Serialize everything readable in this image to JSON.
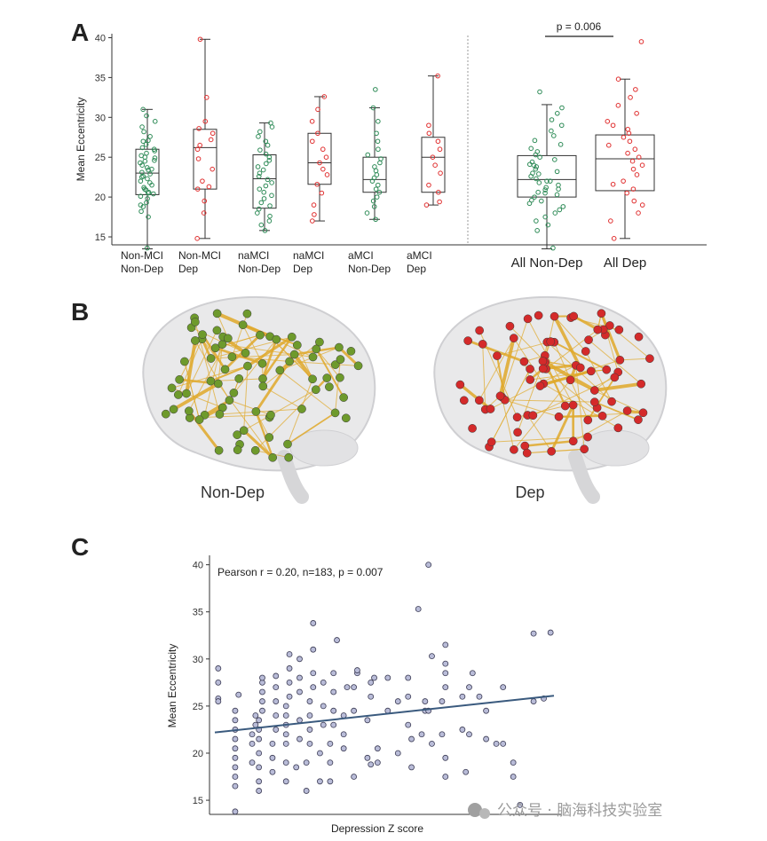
{
  "panels": {
    "a": "A",
    "b": "B",
    "c": "C"
  },
  "chart_data": [
    {
      "type": "box",
      "panel": "A",
      "ylabel": "Mean Eccentricity",
      "ylim": [
        14,
        40.5
      ],
      "yticks": [
        15,
        20,
        25,
        30,
        35,
        40
      ],
      "groups": [
        {
          "label_lines": [
            "Non-MCI",
            "Non-Dep"
          ],
          "color": "#2e8b57",
          "min": 13.5,
          "q1": 20.3,
          "median": 23.0,
          "q3": 26.0,
          "max": 31.0,
          "points": [
            13.6,
            17.5,
            18.2,
            18.8,
            19.3,
            19.8,
            20.1,
            20.4,
            20.6,
            20.9,
            21.2,
            21.5,
            21.8,
            22.0,
            22.3,
            22.6,
            22.9,
            23.1,
            23.4,
            23.7,
            24.0,
            24.3,
            24.6,
            24.9,
            25.2,
            25.5,
            25.8,
            26.2,
            26.6,
            27.1,
            27.6,
            28.2,
            28.8,
            29.5,
            30.2,
            31.0,
            20.5,
            21.0,
            22.5,
            23.5,
            24.5,
            25.0,
            19.0,
            26.0,
            27.0
          ]
        },
        {
          "label_lines": [
            "Non-MCI",
            "Dep"
          ],
          "color": "#e03030",
          "min": 14.8,
          "q1": 21.0,
          "median": 26.2,
          "q3": 28.5,
          "max": 39.8,
          "points": [
            14.8,
            18.0,
            19.5,
            21.0,
            21.3,
            22.0,
            23.5,
            24.8,
            26.0,
            26.5,
            27.2,
            28.0,
            28.6,
            29.5,
            32.5,
            39.8
          ]
        },
        {
          "label_lines": [
            "naMCI",
            "Non-Dep"
          ],
          "color": "#2e8b57",
          "min": 15.8,
          "q1": 18.6,
          "median": 22.3,
          "q3": 25.3,
          "max": 29.3,
          "points": [
            15.8,
            16.5,
            17.0,
            17.6,
            18.0,
            18.5,
            18.9,
            19.3,
            19.8,
            20.2,
            20.6,
            21.0,
            21.4,
            21.8,
            22.2,
            22.6,
            23.0,
            23.4,
            23.8,
            24.2,
            24.6,
            25.0,
            25.4,
            25.9,
            26.5,
            27.0,
            27.6,
            28.2,
            28.8,
            29.3
          ]
        },
        {
          "label_lines": [
            "naMCI",
            "Dep"
          ],
          "color": "#e03030",
          "min": 17.0,
          "q1": 21.6,
          "median": 24.3,
          "q3": 28.0,
          "max": 32.6,
          "points": [
            17.0,
            17.8,
            19.0,
            20.5,
            21.6,
            22.8,
            23.5,
            24.3,
            25.0,
            26.0,
            27.0,
            28.0,
            29.5,
            31.0,
            32.6
          ]
        },
        {
          "label_lines": [
            "aMCI",
            "Non-Dep"
          ],
          "color": "#2e8b57",
          "min": 17.2,
          "q1": 20.6,
          "median": 22.2,
          "q3": 25.0,
          "max": 31.2,
          "points": [
            17.2,
            18.0,
            18.8,
            19.5,
            20.0,
            20.6,
            21.0,
            21.5,
            22.0,
            22.4,
            22.8,
            23.3,
            23.8,
            24.3,
            24.8,
            25.3,
            26.0,
            27.0,
            28.0,
            29.5,
            31.2,
            33.5
          ]
        },
        {
          "label_lines": [
            "aMCI",
            "Dep"
          ],
          "color": "#e03030",
          "min": 19.0,
          "q1": 20.6,
          "median": 25.0,
          "q3": 27.5,
          "max": 35.2,
          "points": [
            19.0,
            19.4,
            20.6,
            21.5,
            23.0,
            24.0,
            25.0,
            26.0,
            27.0,
            28.0,
            29.0,
            35.2
          ]
        }
      ],
      "pooled": [
        {
          "label": "All Non-Dep",
          "color": "#2e8b57",
          "min": 13.5,
          "q1": 20.0,
          "median": 22.2,
          "q3": 25.2,
          "max": 31.6,
          "points": [
            13.6,
            15.8,
            16.5,
            17.0,
            17.5,
            18.0,
            18.4,
            18.8,
            19.2,
            19.6,
            20.0,
            20.3,
            20.6,
            20.9,
            21.2,
            21.5,
            21.8,
            22.0,
            22.3,
            22.6,
            22.9,
            23.2,
            23.5,
            23.8,
            24.1,
            24.4,
            24.7,
            25.0,
            25.3,
            25.7,
            26.1,
            26.6,
            27.1,
            27.7,
            28.3,
            29.0,
            29.7,
            30.5,
            31.2,
            33.2,
            21.0,
            22.0,
            23.0,
            24.0,
            19.5,
            20.5
          ]
        },
        {
          "label": "All Dep",
          "color": "#e03030",
          "min": 14.8,
          "q1": 20.8,
          "median": 24.8,
          "q3": 27.8,
          "max": 34.8,
          "points": [
            14.8,
            17.0,
            18.0,
            19.0,
            19.5,
            20.5,
            21.0,
            21.6,
            22.0,
            22.8,
            23.5,
            24.0,
            24.5,
            25.0,
            25.5,
            26.0,
            26.5,
            27.0,
            27.5,
            28.0,
            28.5,
            29.0,
            29.5,
            30.5,
            31.5,
            32.5,
            33.5,
            34.8,
            39.5
          ]
        }
      ],
      "annotation": "p = 0.006"
    },
    {
      "type": "scatter",
      "panel": "C",
      "xlabel": "Depression Z score",
      "ylabel": "Mean Eccentricity",
      "ylim": [
        13.5,
        41
      ],
      "yticks": [
        15,
        20,
        25,
        30,
        35,
        40
      ],
      "annotation": "Pearson r = 0.20, n=183, p = 0.007",
      "fit_line": {
        "y_start": 22.2,
        "y_end": 26.1
      },
      "points": [
        [
          0.01,
          29.0
        ],
        [
          0.01,
          27.5
        ],
        [
          0.01,
          25.8
        ],
        [
          0.01,
          25.5
        ],
        [
          0.06,
          13.8
        ],
        [
          0.06,
          16.5
        ],
        [
          0.06,
          17.5
        ],
        [
          0.06,
          18.5
        ],
        [
          0.06,
          19.5
        ],
        [
          0.06,
          20.5
        ],
        [
          0.06,
          21.5
        ],
        [
          0.06,
          22.5
        ],
        [
          0.06,
          23.5
        ],
        [
          0.06,
          24.5
        ],
        [
          0.07,
          26.2
        ],
        [
          0.11,
          19.0
        ],
        [
          0.11,
          21.0
        ],
        [
          0.11,
          22.0
        ],
        [
          0.12,
          23.0
        ],
        [
          0.12,
          24.0
        ],
        [
          0.13,
          16.0
        ],
        [
          0.13,
          17.0
        ],
        [
          0.13,
          18.5
        ],
        [
          0.13,
          20.0
        ],
        [
          0.13,
          21.5
        ],
        [
          0.13,
          22.5
        ],
        [
          0.13,
          23.5
        ],
        [
          0.14,
          24.5
        ],
        [
          0.14,
          25.5
        ],
        [
          0.14,
          26.5
        ],
        [
          0.14,
          27.5
        ],
        [
          0.14,
          28.0
        ],
        [
          0.17,
          18.0
        ],
        [
          0.17,
          19.5
        ],
        [
          0.17,
          21.0
        ],
        [
          0.18,
          22.5
        ],
        [
          0.18,
          24.0
        ],
        [
          0.18,
          25.5
        ],
        [
          0.18,
          27.0
        ],
        [
          0.18,
          28.2
        ],
        [
          0.21,
          17.0
        ],
        [
          0.21,
          19.0
        ],
        [
          0.21,
          21.0
        ],
        [
          0.21,
          22.0
        ],
        [
          0.21,
          23.0
        ],
        [
          0.21,
          24.0
        ],
        [
          0.21,
          25.0
        ],
        [
          0.22,
          26.0
        ],
        [
          0.22,
          27.5
        ],
        [
          0.22,
          29.0
        ],
        [
          0.22,
          30.5
        ],
        [
          0.24,
          18.5
        ],
        [
          0.25,
          21.5
        ],
        [
          0.25,
          23.5
        ],
        [
          0.25,
          26.5
        ],
        [
          0.25,
          28.0
        ],
        [
          0.25,
          30.0
        ],
        [
          0.27,
          16.0
        ],
        [
          0.27,
          19.0
        ],
        [
          0.28,
          21.0
        ],
        [
          0.28,
          22.5
        ],
        [
          0.28,
          24.0
        ],
        [
          0.28,
          25.5
        ],
        [
          0.29,
          27.0
        ],
        [
          0.29,
          28.5
        ],
        [
          0.29,
          31.0
        ],
        [
          0.29,
          33.8
        ],
        [
          0.31,
          17.0
        ],
        [
          0.31,
          20.0
        ],
        [
          0.32,
          23.0
        ],
        [
          0.32,
          25.0
        ],
        [
          0.32,
          27.5
        ],
        [
          0.34,
          17.0
        ],
        [
          0.34,
          19.0
        ],
        [
          0.34,
          21.0
        ],
        [
          0.35,
          23.0
        ],
        [
          0.35,
          24.5
        ],
        [
          0.35,
          26.5
        ],
        [
          0.35,
          28.5
        ],
        [
          0.36,
          32.0
        ],
        [
          0.38,
          20.5
        ],
        [
          0.38,
          22.0
        ],
        [
          0.38,
          24.0
        ],
        [
          0.39,
          27.0
        ],
        [
          0.41,
          17.5
        ],
        [
          0.41,
          24.5
        ],
        [
          0.41,
          27.0
        ],
        [
          0.42,
          28.5
        ],
        [
          0.42,
          28.8
        ],
        [
          0.45,
          19.5
        ],
        [
          0.45,
          23.5
        ],
        [
          0.46,
          26.0
        ],
        [
          0.46,
          27.5
        ],
        [
          0.46,
          18.8
        ],
        [
          0.47,
          28.0
        ],
        [
          0.48,
          19.0
        ],
        [
          0.48,
          20.5
        ],
        [
          0.51,
          24.5
        ],
        [
          0.51,
          28.0
        ],
        [
          0.54,
          25.5
        ],
        [
          0.54,
          20.0
        ],
        [
          0.57,
          23.0
        ],
        [
          0.57,
          26.0
        ],
        [
          0.57,
          28.0
        ],
        [
          0.58,
          18.5
        ],
        [
          0.58,
          21.5
        ],
        [
          0.6,
          35.3
        ],
        [
          0.61,
          22.0
        ],
        [
          0.62,
          24.5
        ],
        [
          0.62,
          25.5
        ],
        [
          0.63,
          40.0
        ],
        [
          0.63,
          24.5
        ],
        [
          0.64,
          30.3
        ],
        [
          0.64,
          21.0
        ],
        [
          0.67,
          22.0
        ],
        [
          0.67,
          25.5
        ],
        [
          0.68,
          27.0
        ],
        [
          0.68,
          28.5
        ],
        [
          0.68,
          29.5
        ],
        [
          0.68,
          31.5
        ],
        [
          0.68,
          17.5
        ],
        [
          0.68,
          19.5
        ],
        [
          0.73,
          22.5
        ],
        [
          0.73,
          26.0
        ],
        [
          0.74,
          18.0
        ],
        [
          0.75,
          27.0
        ],
        [
          0.75,
          22.0
        ],
        [
          0.76,
          28.5
        ],
        [
          0.78,
          26.0
        ],
        [
          0.8,
          21.5
        ],
        [
          0.8,
          24.5
        ],
        [
          0.83,
          21.0
        ],
        [
          0.85,
          21.0
        ],
        [
          0.85,
          27.0
        ],
        [
          0.88,
          19.0
        ],
        [
          0.88,
          17.5
        ],
        [
          0.9,
          14.5
        ],
        [
          0.94,
          25.5
        ],
        [
          0.94,
          32.7
        ],
        [
          0.97,
          25.8
        ],
        [
          0.99,
          32.8
        ]
      ]
    }
  ],
  "brains": {
    "left_label": "Non-Dep",
    "right_label": "Dep",
    "left_node_color": "#6e9a2c",
    "right_node_color": "#d42a2a",
    "edge_color": "#e0a92a"
  },
  "watermark": "公众号 · 脑海科技实验室"
}
